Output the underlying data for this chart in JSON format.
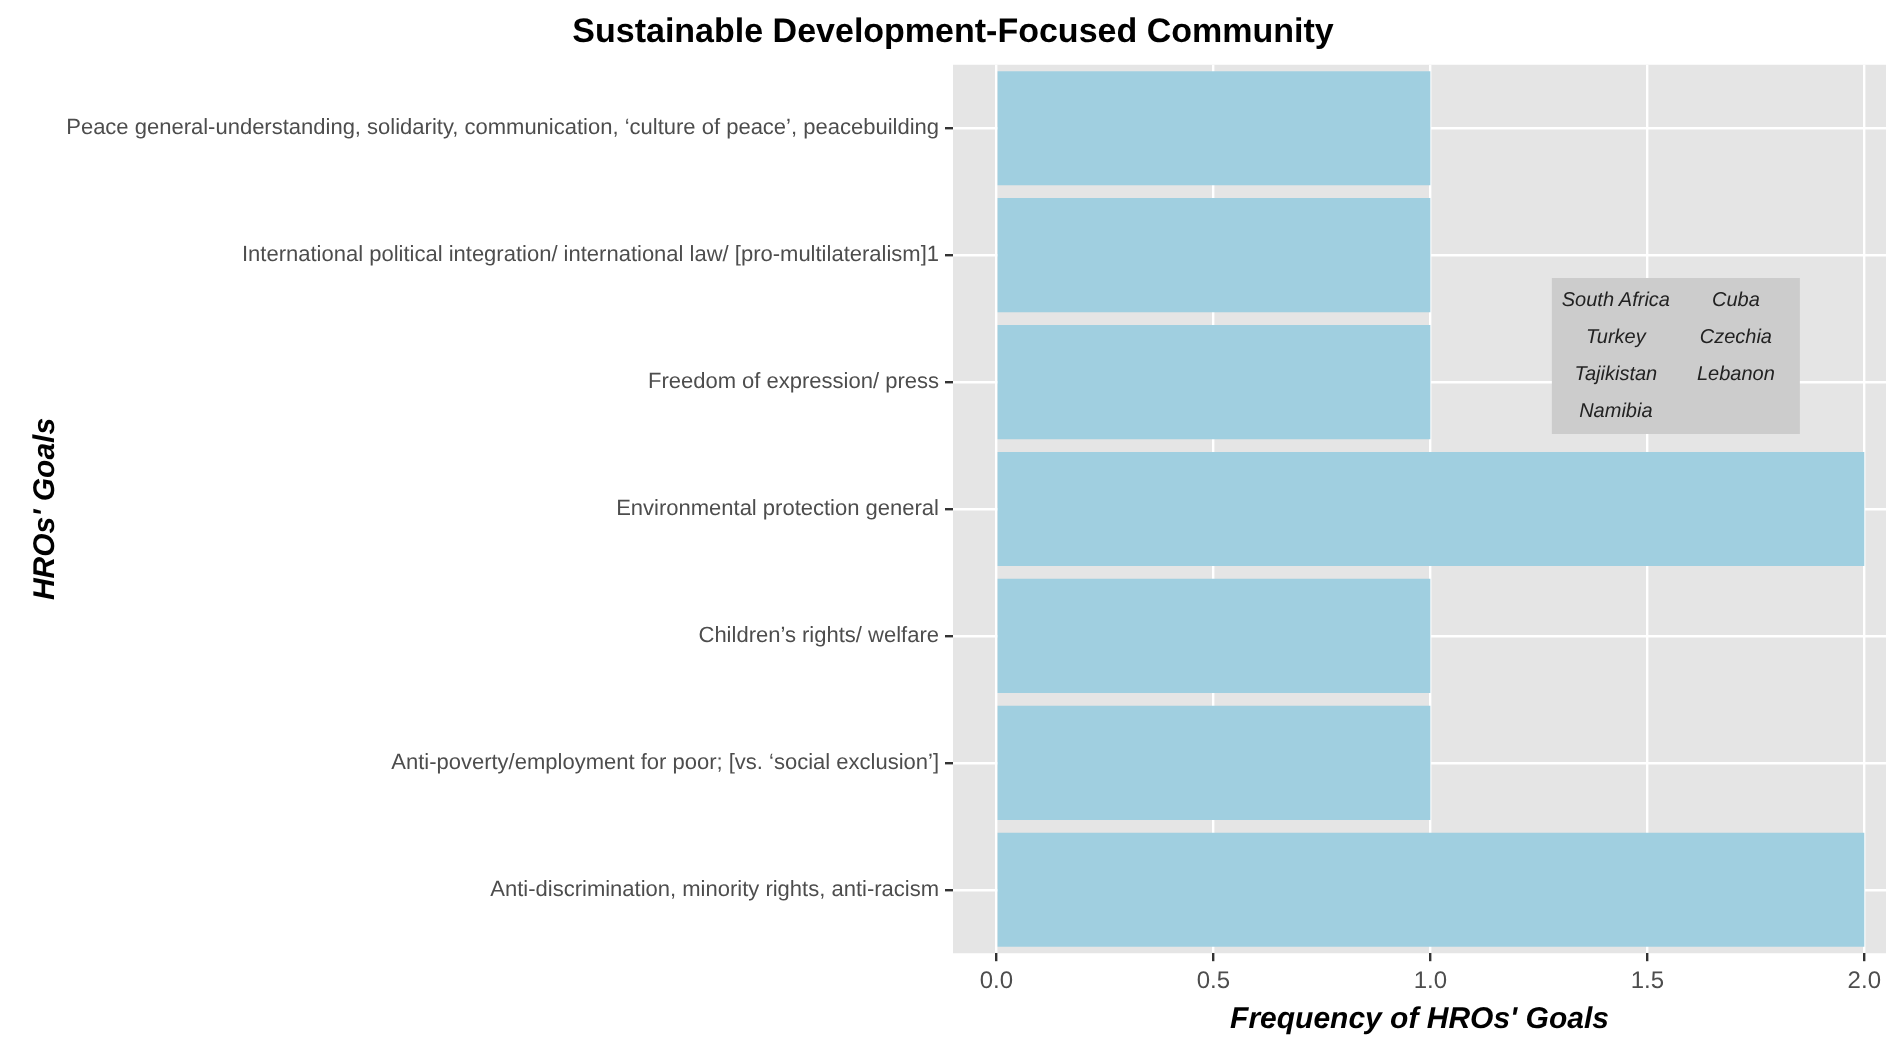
{
  "chart_data": {
    "type": "bar",
    "orientation": "horizontal",
    "title": "Sustainable Development-Focused Community",
    "xlabel": "Frequency of HROs' Goals",
    "ylabel": "HROs' Goals",
    "categories": [
      "Peace general-understanding, solidarity, communication, ‘culture of peace’, peacebuilding",
      "International political integration/ international law/ [pro-multilateralism]1",
      "Freedom of expression/ press",
      "Environmental protection general",
      "Children’s rights/ welfare",
      "Anti-poverty/employment for poor; [vs. ‘social exclusion’]",
      "Anti-discrimination, minority rights, anti-racism"
    ],
    "values": [
      1,
      1,
      1,
      2,
      1,
      1,
      2
    ],
    "color": "#a0cfe0",
    "xlim": [
      -0.1,
      2.05
    ],
    "xticks": [
      {
        "value": 0,
        "label": "0.0"
      },
      {
        "value": 0.5,
        "label": "0.5"
      },
      {
        "value": 1,
        "label": "1.0"
      },
      {
        "value": 1.5,
        "label": "1.5"
      },
      {
        "value": 2,
        "label": "2.0"
      }
    ],
    "grid": true,
    "annotations": [
      "South Africa",
      "Cuba",
      "Turkey",
      "Czechia",
      "Tajikistan",
      "Lebanon",
      "Namibia"
    ]
  }
}
